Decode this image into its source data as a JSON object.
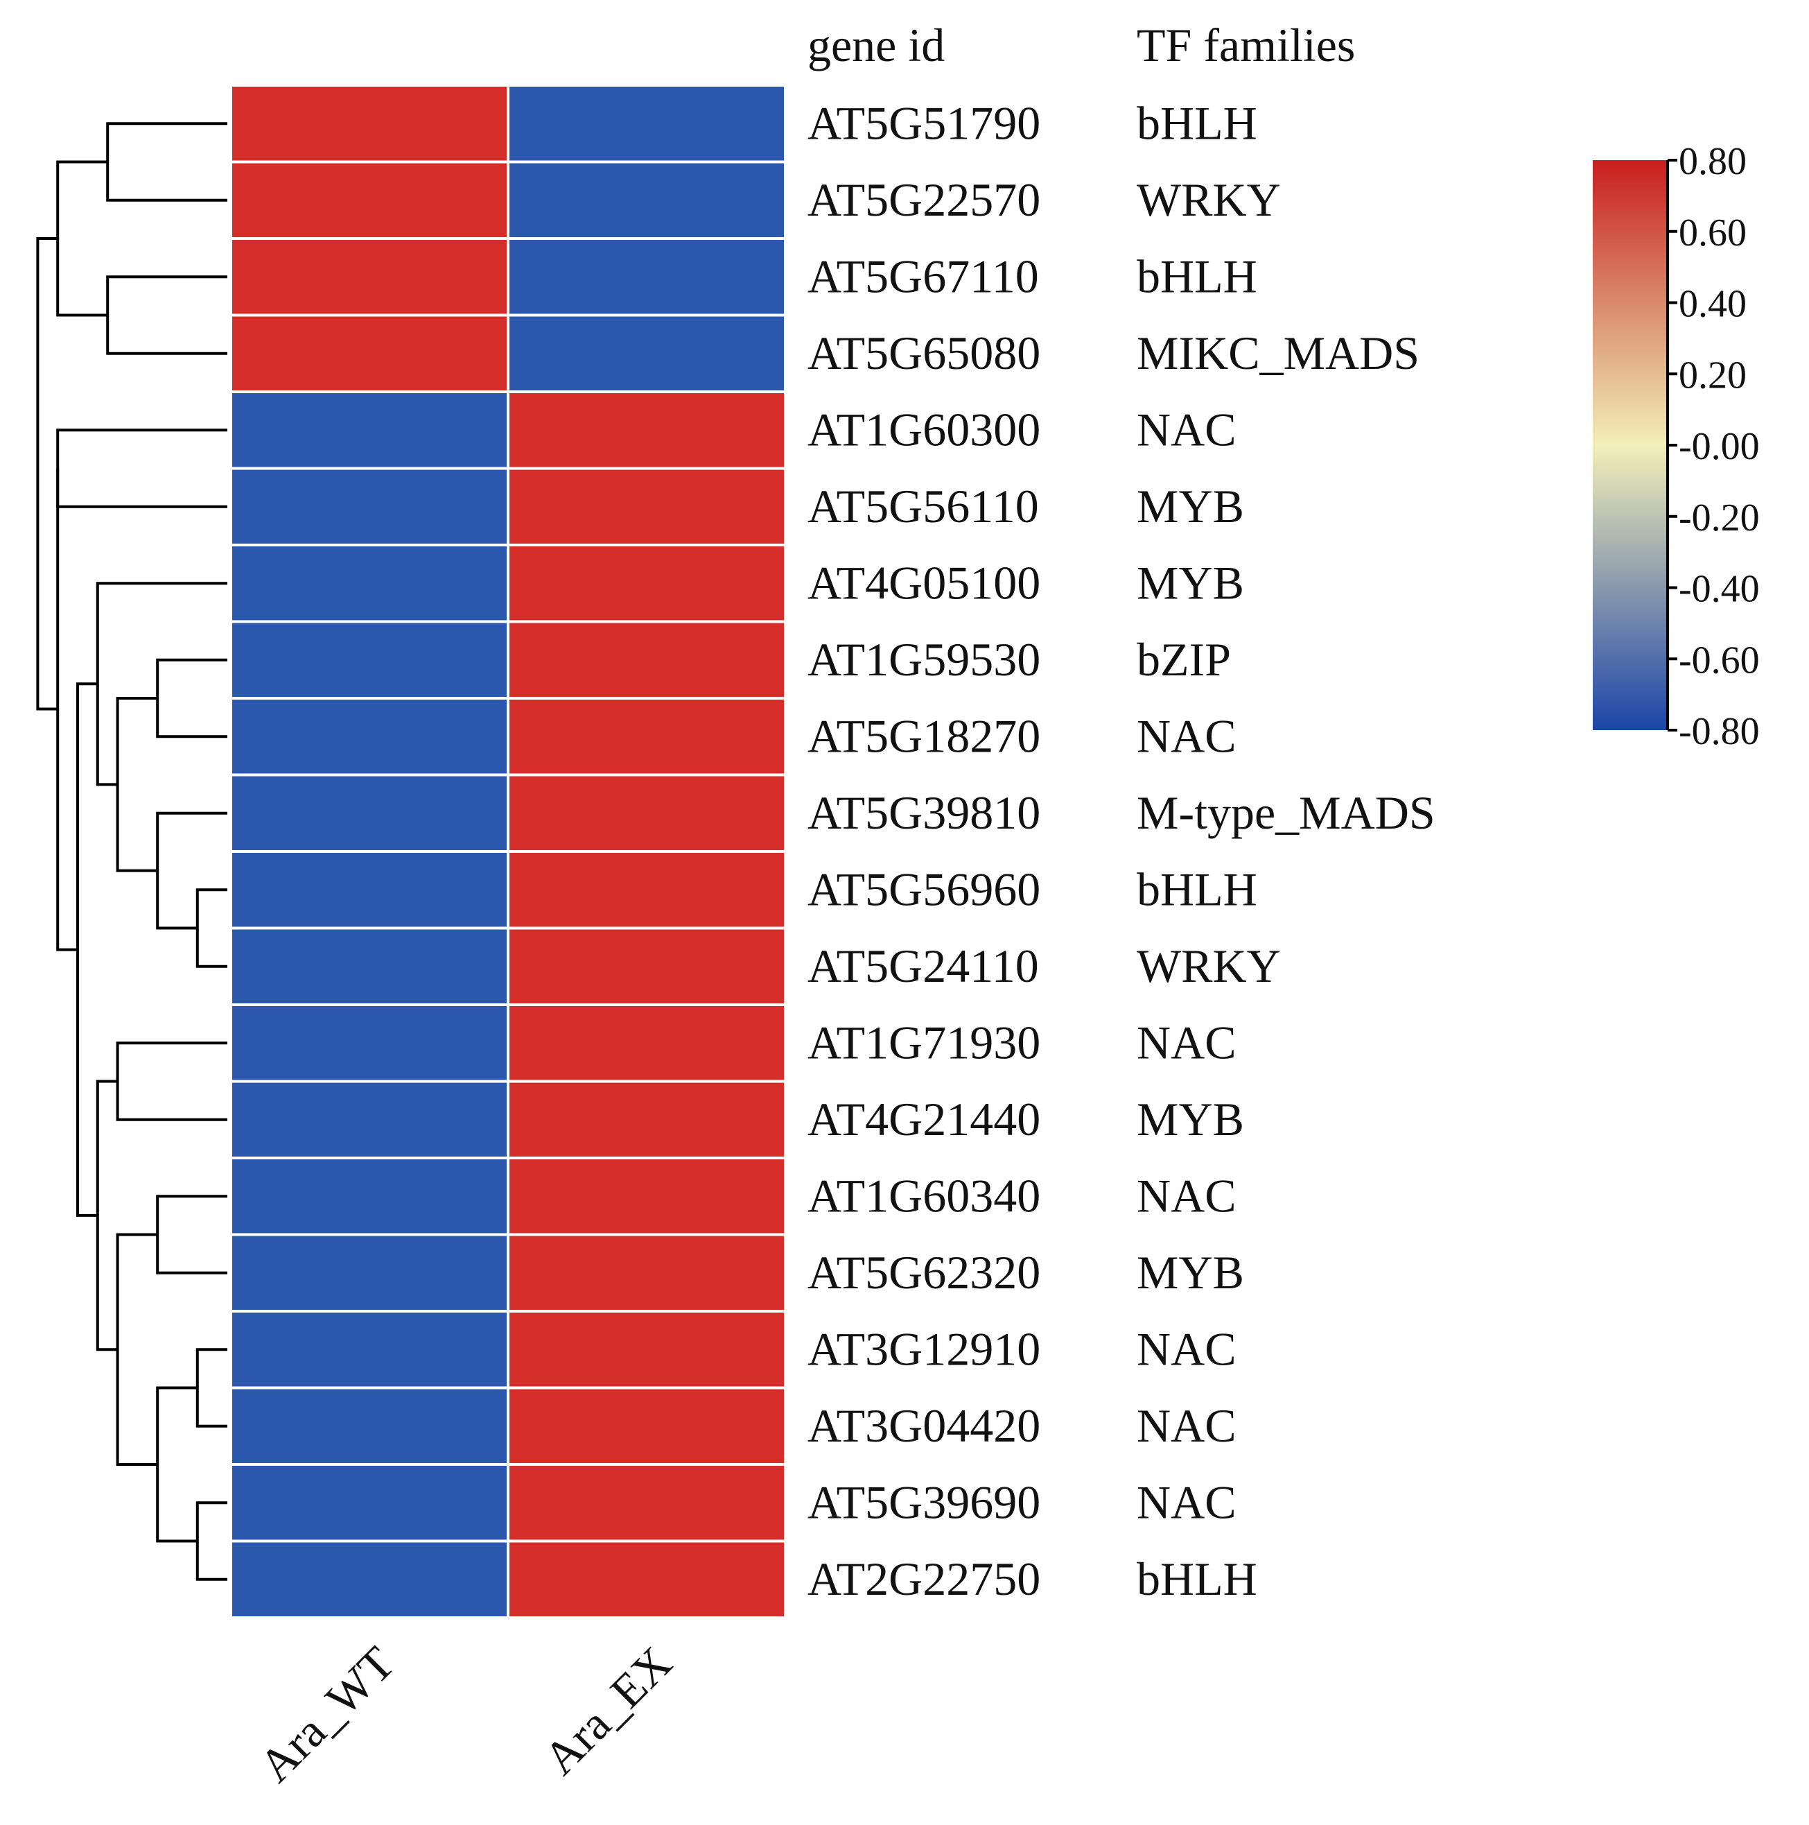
{
  "chart_data": {
    "type": "heatmap",
    "title": "",
    "columns": [
      "Ara_WT",
      "Ara_EX"
    ],
    "row_header": "gene id",
    "annotation_header": "TF families",
    "rows": [
      {
        "gene_id": "AT5G51790",
        "family": "bHLH",
        "values": [
          0.8,
          -0.8
        ]
      },
      {
        "gene_id": "AT5G22570",
        "family": "WRKY",
        "values": [
          0.8,
          -0.8
        ]
      },
      {
        "gene_id": "AT5G67110",
        "family": "bHLH",
        "values": [
          0.8,
          -0.8
        ]
      },
      {
        "gene_id": "AT5G65080",
        "family": "MIKC_MADS",
        "values": [
          0.8,
          -0.8
        ]
      },
      {
        "gene_id": "AT1G60300",
        "family": "NAC",
        "values": [
          -0.8,
          0.8
        ]
      },
      {
        "gene_id": "AT5G56110",
        "family": "MYB",
        "values": [
          -0.8,
          0.8
        ]
      },
      {
        "gene_id": "AT4G05100",
        "family": "MYB",
        "values": [
          -0.8,
          0.8
        ]
      },
      {
        "gene_id": "AT1G59530",
        "family": "bZIP",
        "values": [
          -0.8,
          0.8
        ]
      },
      {
        "gene_id": "AT5G18270",
        "family": "NAC",
        "values": [
          -0.8,
          0.8
        ]
      },
      {
        "gene_id": "AT5G39810",
        "family": "M-type_MADS",
        "values": [
          -0.8,
          0.8
        ]
      },
      {
        "gene_id": "AT5G56960",
        "family": "bHLH",
        "values": [
          -0.8,
          0.8
        ]
      },
      {
        "gene_id": "AT5G24110",
        "family": "WRKY",
        "values": [
          -0.8,
          0.8
        ]
      },
      {
        "gene_id": "AT1G71930",
        "family": "NAC",
        "values": [
          -0.8,
          0.8
        ]
      },
      {
        "gene_id": "AT4G21440",
        "family": "MYB",
        "values": [
          -0.8,
          0.8
        ]
      },
      {
        "gene_id": "AT1G60340",
        "family": "NAC",
        "values": [
          -0.8,
          0.8
        ]
      },
      {
        "gene_id": "AT5G62320",
        "family": "MYB",
        "values": [
          -0.8,
          0.8
        ]
      },
      {
        "gene_id": "AT3G12910",
        "family": "NAC",
        "values": [
          -0.8,
          0.8
        ]
      },
      {
        "gene_id": "AT3G04420",
        "family": "NAC",
        "values": [
          -0.8,
          0.8
        ]
      },
      {
        "gene_id": "AT5G39690",
        "family": "NAC",
        "values": [
          -0.8,
          0.8
        ]
      },
      {
        "gene_id": "AT2G22750",
        "family": "bHLH",
        "values": [
          -0.8,
          0.8
        ]
      }
    ],
    "color_scale": {
      "min": -0.8,
      "max": 0.8,
      "ticks": [
        "0.80",
        "0.60",
        "0.40",
        "0.20",
        "-0.00",
        "-0.20",
        "-0.40",
        "-0.60",
        "-0.80"
      ],
      "colors": {
        "low": "#2b58ad",
        "mid": "#f2efb8",
        "high": "#d42d2a"
      },
      "legend_position": "top-right"
    },
    "dendrogram": {
      "side": "left",
      "merges": [
        [
          0,
          1,
          0.6
        ],
        [
          2,
          3,
          0.6
        ],
        [
          20,
          21,
          0.85
        ],
        [
          4,
          5,
          0.85
        ],
        [
          7,
          8,
          0.35
        ],
        [
          10,
          11,
          0.15
        ],
        [
          9,
          25,
          0.35
        ],
        [
          24,
          26,
          0.55
        ],
        [
          6,
          27,
          0.65
        ],
        [
          12,
          13,
          0.55
        ],
        [
          14,
          15,
          0.35
        ],
        [
          16,
          17,
          0.15
        ],
        [
          18,
          19,
          0.15
        ],
        [
          31,
          32,
          0.35
        ],
        [
          30,
          33,
          0.55
        ],
        [
          29,
          34,
          0.65
        ],
        [
          28,
          35,
          0.75
        ],
        [
          23,
          36,
          0.85
        ],
        [
          22,
          37,
          0.95
        ]
      ]
    }
  }
}
